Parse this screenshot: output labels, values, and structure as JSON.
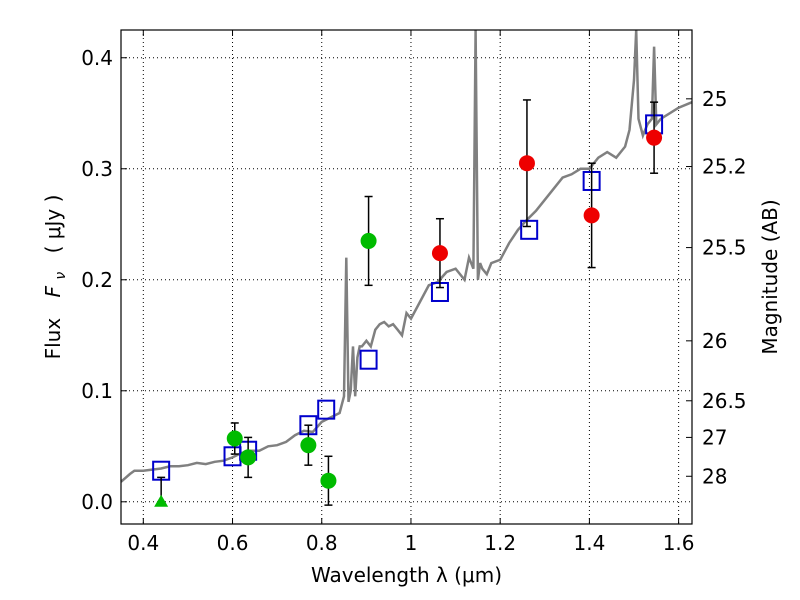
{
  "chart_data": {
    "type": "scatter",
    "xlabel": "Wavelength  λ (μm)",
    "ylabel_prefix": "Flux",
    "ylabel_var": "F",
    "ylabel_sub": "ν",
    "ylabel_unit": "( μJy )",
    "y2label": "Magnitude (AB)",
    "xlim": [
      0.35,
      1.63
    ],
    "ylim": [
      -0.02,
      0.425
    ],
    "xticks": [
      {
        "value": 0.4,
        "label": "0.4"
      },
      {
        "value": 0.6,
        "label": "0.6"
      },
      {
        "value": 0.8,
        "label": "0.8"
      },
      {
        "value": 1.0,
        "label": "1"
      },
      {
        "value": 1.2,
        "label": "1.2"
      },
      {
        "value": 1.4,
        "label": "1.4"
      },
      {
        "value": 1.6,
        "label": "1.6"
      }
    ],
    "yticks": [
      {
        "value": 0.0,
        "label": "0.0"
      },
      {
        "value": 0.1,
        "label": "0.1"
      },
      {
        "value": 0.2,
        "label": "0.2"
      },
      {
        "value": 0.3,
        "label": "0.3"
      },
      {
        "value": 0.4,
        "label": "0.4"
      }
    ],
    "y2ticks": [
      {
        "label": "25",
        "flux": 0.363
      },
      {
        "label": "25.2",
        "flux": 0.302
      },
      {
        "label": "25.5",
        "flux": 0.229
      },
      {
        "label": "26",
        "flux": 0.145
      },
      {
        "label": "26.5",
        "flux": 0.091
      },
      {
        "label": "27",
        "flux": 0.058
      },
      {
        "label": "28",
        "flux": 0.023
      }
    ],
    "grid": true,
    "colors": {
      "spectrum": "#808080",
      "model": "#0000cc",
      "green": "#00bb00",
      "red": "#ee0000",
      "errorbar": "#000000"
    },
    "spectrum": {
      "x": [
        0.35,
        0.37,
        0.38,
        0.4,
        0.42,
        0.44,
        0.46,
        0.48,
        0.5,
        0.52,
        0.54,
        0.56,
        0.58,
        0.6,
        0.62,
        0.64,
        0.66,
        0.68,
        0.7,
        0.72,
        0.74,
        0.76,
        0.78,
        0.8,
        0.82,
        0.84,
        0.85,
        0.855,
        0.86,
        0.865,
        0.87,
        0.875,
        0.88,
        0.885,
        0.89,
        0.9,
        0.91,
        0.92,
        0.93,
        0.94,
        0.95,
        0.96,
        0.97,
        0.98,
        0.99,
        1.0,
        1.02,
        1.04,
        1.06,
        1.08,
        1.1,
        1.12,
        1.13,
        1.14,
        1.145,
        1.15,
        1.155,
        1.16,
        1.17,
        1.18,
        1.2,
        1.22,
        1.24,
        1.26,
        1.28,
        1.3,
        1.32,
        1.34,
        1.36,
        1.38,
        1.4,
        1.42,
        1.44,
        1.46,
        1.48,
        1.49,
        1.5,
        1.505,
        1.51,
        1.52,
        1.53,
        1.54,
        1.545,
        1.55,
        1.56,
        1.58,
        1.6,
        1.63
      ],
      "y": [
        0.018,
        0.025,
        0.028,
        0.028,
        0.029,
        0.03,
        0.032,
        0.032,
        0.033,
        0.035,
        0.034,
        0.036,
        0.037,
        0.04,
        0.044,
        0.046,
        0.046,
        0.05,
        0.051,
        0.054,
        0.06,
        0.064,
        0.063,
        0.072,
        0.076,
        0.08,
        0.095,
        0.22,
        0.09,
        0.1,
        0.14,
        0.095,
        0.13,
        0.14,
        0.14,
        0.145,
        0.14,
        0.155,
        0.16,
        0.162,
        0.158,
        0.16,
        0.155,
        0.15,
        0.17,
        0.165,
        0.18,
        0.195,
        0.198,
        0.207,
        0.21,
        0.2,
        0.22,
        0.21,
        0.44,
        0.2,
        0.215,
        0.21,
        0.205,
        0.215,
        0.218,
        0.233,
        0.245,
        0.254,
        0.262,
        0.272,
        0.282,
        0.292,
        0.295,
        0.3,
        0.3,
        0.31,
        0.315,
        0.31,
        0.32,
        0.335,
        0.38,
        0.44,
        0.345,
        0.33,
        0.34,
        0.345,
        0.41,
        0.34,
        0.345,
        0.35,
        0.355,
        0.36
      ]
    },
    "series": [
      {
        "marker": "square",
        "x": [
          0.44,
          0.6,
          0.635,
          0.77,
          0.81,
          0.905,
          1.065,
          1.265,
          1.405,
          1.545
        ],
        "y": [
          0.028,
          0.041,
          0.046,
          0.069,
          0.083,
          0.128,
          0.189,
          0.245,
          0.289,
          0.34
        ]
      },
      {
        "marker": "circle",
        "color": "green",
        "x": [
          0.605,
          0.635,
          0.77,
          0.815,
          0.905
        ],
        "y": [
          0.057,
          0.04,
          0.051,
          0.019,
          0.235
        ],
        "err": [
          0.014,
          0.018,
          0.018,
          0.022,
          0.04
        ]
      },
      {
        "marker": "circle",
        "color": "red",
        "x": [
          1.065,
          1.26,
          1.405,
          1.545
        ],
        "y": [
          0.224,
          0.305,
          0.258,
          0.328
        ],
        "err": [
          0.031,
          0.057,
          0.047,
          0.032
        ]
      },
      {
        "marker": "triangle",
        "color": "green",
        "x": [
          0.44
        ],
        "y": [
          0.0
        ],
        "err_up": [
          0.022
        ]
      }
    ]
  }
}
